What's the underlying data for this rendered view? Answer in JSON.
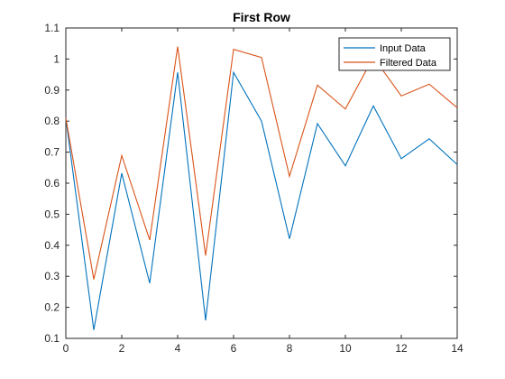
{
  "chart_data": {
    "type": "line",
    "title": "First Row",
    "xlabel": "",
    "ylabel": "",
    "xlim": [
      0,
      14
    ],
    "ylim": [
      0.1,
      1.1
    ],
    "x_ticks": [
      0,
      2,
      4,
      6,
      8,
      10,
      12,
      14
    ],
    "y_ticks": [
      0.1,
      0.2,
      0.3,
      0.4,
      0.5,
      0.6,
      0.7,
      0.8,
      0.9,
      1,
      1.1
    ],
    "grid": false,
    "legend_position": "top-right",
    "x": [
      0,
      1,
      2,
      3,
      4,
      5,
      6,
      7,
      8,
      9,
      10,
      11,
      12,
      13,
      14
    ],
    "series": [
      {
        "name": "Input Data",
        "color": "#0072BD",
        "values": [
          0.81,
          0.127,
          0.632,
          0.278,
          0.957,
          0.158,
          0.957,
          0.8,
          0.421,
          0.792,
          0.656,
          0.849,
          0.679,
          0.743,
          0.66
        ]
      },
      {
        "name": "Filtered Data",
        "color": "#D95319",
        "values": [
          0.81,
          0.29,
          0.689,
          0.417,
          1.04,
          0.367,
          1.031,
          1.005,
          0.622,
          0.916,
          0.839,
          1.006,
          0.881,
          0.919,
          0.843
        ]
      }
    ]
  }
}
